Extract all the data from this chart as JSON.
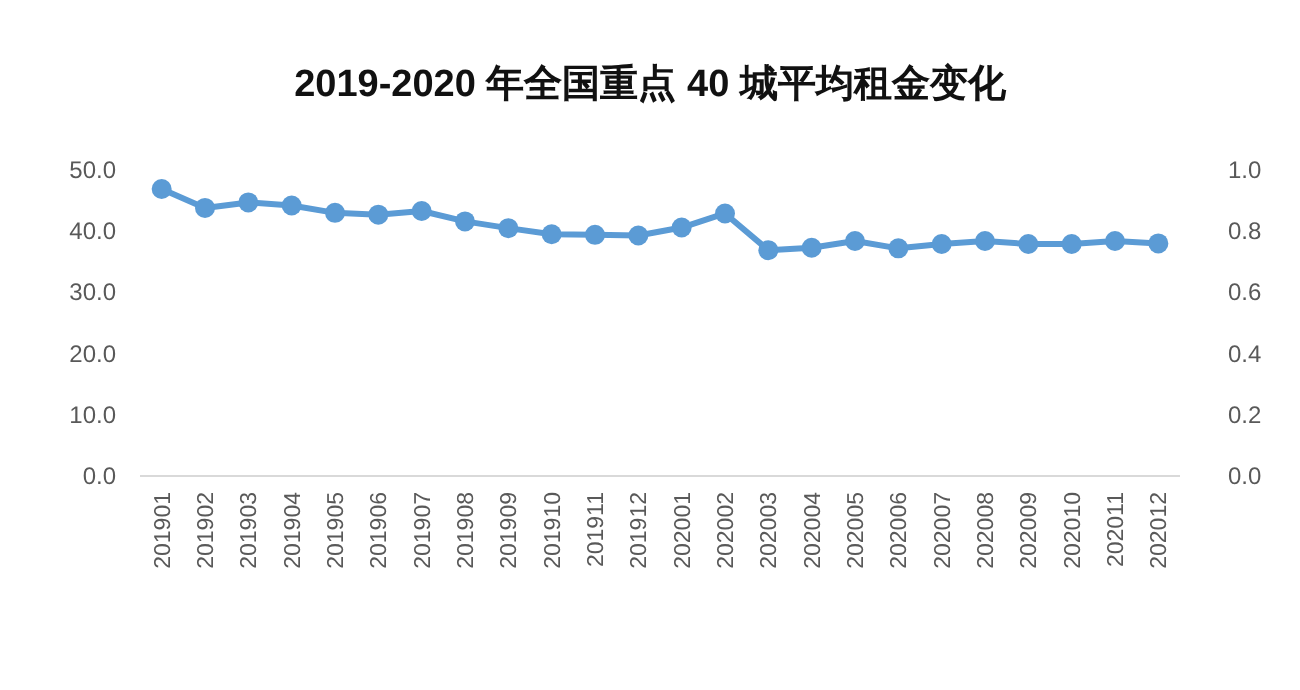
{
  "chart_data": {
    "type": "line",
    "title": "2019-2020 年全国重点 40 城平均租金变化",
    "categories": [
      "201901",
      "201902",
      "201903",
      "201904",
      "201905",
      "201906",
      "201907",
      "201908",
      "201909",
      "201910",
      "201911",
      "201912",
      "202001",
      "202002",
      "202003",
      "202004",
      "202005",
      "202006",
      "202007",
      "202008",
      "202009",
      "202010",
      "202011",
      "202012"
    ],
    "series": [
      {
        "color": "#5b9bd5",
        "values": [
          46.9,
          43.8,
          44.7,
          44.2,
          43.0,
          42.7,
          43.3,
          41.6,
          40.5,
          39.5,
          39.4,
          39.3,
          40.6,
          42.9,
          36.9,
          37.3,
          38.4,
          37.2,
          37.9,
          38.4,
          37.9,
          37.9,
          38.4,
          38.0
        ]
      }
    ],
    "ylim": [
      0,
      50
    ],
    "yticks": [
      {
        "value": 0,
        "label": "0.0"
      },
      {
        "value": 10,
        "label": "10.0"
      },
      {
        "value": 20,
        "label": "20.0"
      },
      {
        "value": 30,
        "label": "30.0"
      },
      {
        "value": 40,
        "label": "40.0"
      },
      {
        "value": 50,
        "label": "50.0"
      }
    ],
    "y2lim": [
      0,
      1
    ],
    "y2ticks": [
      {
        "value": 0,
        "label": "0.0"
      },
      {
        "value": 0.2,
        "label": "0.2"
      },
      {
        "value": 0.4,
        "label": "0.4"
      },
      {
        "value": 0.6,
        "label": "0.6"
      },
      {
        "value": 0.8,
        "label": "0.8"
      },
      {
        "value": 1,
        "label": "1.0"
      }
    ],
    "marker": "circle",
    "line_style": "solid",
    "grid": false
  }
}
